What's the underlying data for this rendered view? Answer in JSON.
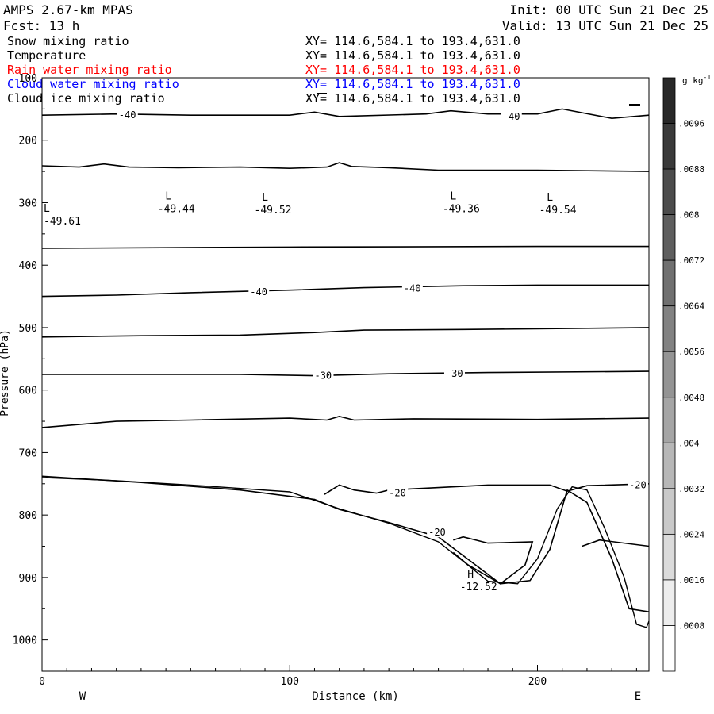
{
  "header": {
    "model": "AMPS 2.67-km MPAS",
    "forecast": "Fcst:   13 h",
    "init": "Init: 00 UTC Sun 21 Dec 25",
    "valid": "Valid: 13 UTC Sun 21 Dec 25"
  },
  "fields": [
    {
      "name": "Snow mixing ratio",
      "xy": "XY= 114.6,584.1 to 193.4,631.0",
      "color": "#000000"
    },
    {
      "name": "Temperature",
      "xy": "XY= 114.6,584.1 to 193.4,631.0",
      "color": "#000000"
    },
    {
      "name": "Rain water mixing ratio",
      "xy": "XY= 114.6,584.1 to 193.4,631.0",
      "color": "#ff0000"
    },
    {
      "name": "Cloud water mixing ratio",
      "xy": "XY= 114.6,584.1 to 193.4,631.0",
      "color": "#0000ff"
    },
    {
      "name": "Cloud ice mixing ratio",
      "xy": "XY= 114.6,584.1 to 193.4,631.0",
      "color": "#000000"
    }
  ],
  "chart_data": {
    "type": "line",
    "xlabel": "Distance (km)",
    "ylabel": "Pressure (hPa)",
    "x_end_labels": {
      "left": "W",
      "right": "E"
    },
    "xlim": [
      0,
      245
    ],
    "ylim": [
      1050,
      100
    ],
    "x_ticks": [
      0,
      100,
      200
    ],
    "y_ticks": [
      100,
      200,
      300,
      400,
      500,
      600,
      700,
      800,
      900,
      1000
    ],
    "grid": false,
    "colorbar": {
      "unit": "g kg",
      "unit_exp": "-1",
      "labels": [
        ".0096",
        ".0088",
        ".008",
        ".0072",
        ".0064",
        ".0056",
        ".0048",
        ".004",
        ".0032",
        ".0024",
        ".0016",
        ".0008"
      ]
    },
    "isotherms": [
      {
        "points": [
          [
            0,
            160
          ],
          [
            30,
            158
          ],
          [
            60,
            160
          ],
          [
            100,
            160
          ],
          [
            110,
            155
          ],
          [
            120,
            162
          ],
          [
            155,
            158
          ],
          [
            165,
            153
          ],
          [
            180,
            158
          ],
          [
            200,
            158
          ],
          [
            210,
            150
          ],
          [
            230,
            165
          ],
          [
            245,
            160
          ]
        ],
        "labels": [
          {
            "text": "-40",
            "x": 31,
            "y": 160
          },
          {
            "text": "-40",
            "x": 186,
            "y": 162
          }
        ]
      },
      {
        "points": [
          [
            0,
            241
          ],
          [
            15,
            243
          ],
          [
            25,
            238
          ],
          [
            35,
            243
          ],
          [
            55,
            244
          ],
          [
            80,
            243
          ],
          [
            100,
            245
          ],
          [
            115,
            243
          ],
          [
            120,
            236
          ],
          [
            125,
            242
          ],
          [
            140,
            244
          ],
          [
            160,
            248
          ],
          [
            200,
            248
          ],
          [
            245,
            250
          ]
        ],
        "labels": []
      },
      {
        "points": [
          [
            0,
            373
          ],
          [
            100,
            371
          ],
          [
            200,
            370
          ],
          [
            245,
            370
          ]
        ],
        "labels": []
      },
      {
        "points": [
          [
            0,
            450
          ],
          [
            30,
            448
          ],
          [
            60,
            444
          ],
          [
            100,
            440
          ],
          [
            130,
            436
          ],
          [
            170,
            433
          ],
          [
            200,
            432
          ],
          [
            245,
            432
          ]
        ],
        "labels": [
          {
            "text": "-40",
            "x": 84,
            "y": 443
          },
          {
            "text": "-40",
            "x": 146,
            "y": 437
          }
        ]
      },
      {
        "points": [
          [
            0,
            515
          ],
          [
            40,
            513
          ],
          [
            80,
            512
          ],
          [
            110,
            508
          ],
          [
            130,
            504
          ],
          [
            170,
            503
          ],
          [
            200,
            502
          ],
          [
            245,
            500
          ]
        ],
        "labels": []
      },
      {
        "points": [
          [
            0,
            575
          ],
          [
            40,
            575
          ],
          [
            80,
            575
          ],
          [
            110,
            577
          ],
          [
            140,
            574
          ],
          [
            180,
            572
          ],
          [
            245,
            570
          ]
        ],
        "labels": [
          {
            "text": "-30",
            "x": 110,
            "y": 577
          },
          {
            "text": "-30",
            "x": 163,
            "y": 574
          }
        ]
      },
      {
        "points": [
          [
            0,
            660
          ],
          [
            30,
            650
          ],
          [
            60,
            648
          ],
          [
            100,
            645
          ],
          [
            115,
            648
          ],
          [
            120,
            642
          ],
          [
            126,
            648
          ],
          [
            150,
            646
          ],
          [
            200,
            647
          ],
          [
            245,
            645
          ]
        ],
        "labels": []
      },
      {
        "points": [
          [
            0,
            738
          ],
          [
            40,
            748
          ],
          [
            80,
            760
          ],
          [
            110,
            775
          ],
          [
            120,
            791
          ],
          [
            140,
            812
          ],
          [
            160,
            835
          ],
          [
            175,
            880
          ],
          [
            185,
            910
          ],
          [
            197,
            905
          ],
          [
            205,
            855
          ],
          [
            212,
            760
          ],
          [
            220,
            780
          ],
          [
            230,
            870
          ],
          [
            237,
            950
          ],
          [
            245,
            955
          ]
        ],
        "labels": [
          {
            "text": "-20",
            "x": 156,
            "y": 828
          }
        ]
      },
      {
        "points": [
          [
            114,
            767
          ],
          [
            120,
            752
          ],
          [
            126,
            760
          ],
          [
            135,
            765
          ],
          [
            140,
            760
          ],
          [
            180,
            752
          ],
          [
            205,
            752
          ],
          [
            212,
            762
          ],
          [
            220,
            753
          ],
          [
            245,
            750
          ]
        ],
        "labels": [
          {
            "text": "-20",
            "x": 140,
            "y": 765
          },
          {
            "text": "-20",
            "x": 237,
            "y": 752
          }
        ]
      },
      {
        "points": [
          [
            166,
            840
          ],
          [
            170,
            835
          ],
          [
            180,
            845
          ],
          [
            198,
            843
          ],
          [
            195,
            880
          ],
          [
            185,
            910
          ],
          [
            172,
            880
          ],
          [
            166,
            860
          ]
        ],
        "labels": []
      },
      {
        "points": [
          [
            218,
            850
          ],
          [
            225,
            840
          ],
          [
            245,
            850
          ]
        ],
        "labels": []
      }
    ],
    "terrain": {
      "points": [
        [
          0,
          740
        ],
        [
          30,
          745
        ],
        [
          60,
          752
        ],
        [
          100,
          763
        ],
        [
          120,
          790
        ],
        [
          140,
          813
        ],
        [
          160,
          843
        ],
        [
          170,
          874
        ],
        [
          180,
          906
        ],
        [
          192,
          910
        ],
        [
          200,
          870
        ],
        [
          208,
          790
        ],
        [
          214,
          755
        ],
        [
          220,
          760
        ],
        [
          227,
          820
        ],
        [
          235,
          900
        ],
        [
          240,
          975
        ],
        [
          244,
          980
        ],
        [
          245,
          970
        ]
      ]
    },
    "extrema": [
      {
        "mark": "L",
        "value": "-49.44",
        "x": 51,
        "y": 305
      },
      {
        "mark": "L",
        "value": "-49.52",
        "x": 90,
        "y": 307
      },
      {
        "mark": "L",
        "value": "-49.36",
        "x": 166,
        "y": 305
      },
      {
        "mark": "L",
        "value": "-49.54",
        "x": 205,
        "y": 307
      },
      {
        "mark": "L",
        "value": "-49.61",
        "x": 0,
        "y": 325
      },
      {
        "mark": "H",
        "value": "-12.52",
        "x": 173,
        "y": 910
      }
    ]
  }
}
